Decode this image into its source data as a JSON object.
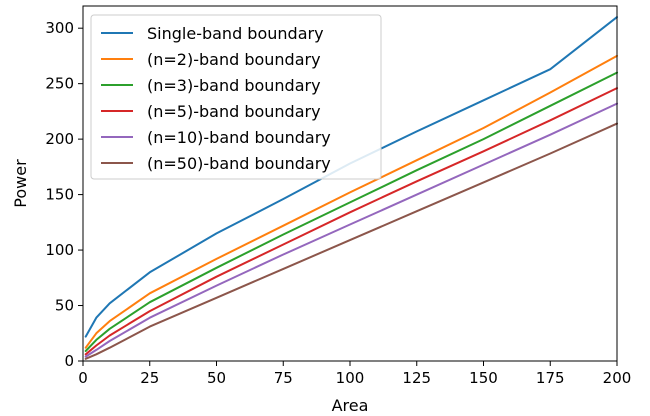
{
  "chart_data": {
    "type": "line",
    "title": "",
    "xlabel": "Area",
    "ylabel": "Power",
    "xlim": [
      0,
      200
    ],
    "ylim": [
      0,
      320
    ],
    "xticks": [
      0,
      25,
      50,
      75,
      100,
      125,
      150,
      175,
      200
    ],
    "yticks": [
      0,
      50,
      100,
      150,
      200,
      250,
      300
    ],
    "grid": false,
    "legend_position": "top-left",
    "series": [
      {
        "name": "Single-band boundary",
        "color": "#1f77b4",
        "points": [
          [
            1,
            22
          ],
          [
            5,
            39
          ],
          [
            10,
            52
          ],
          [
            25,
            80
          ],
          [
            50,
            115
          ],
          [
            75,
            146
          ],
          [
            100,
            178
          ],
          [
            125,
            207
          ],
          [
            150,
            235
          ],
          [
            175,
            263
          ],
          [
            200,
            310
          ]
        ]
      },
      {
        "name": "(n=2)-band boundary",
        "color": "#ff7f0e",
        "points": [
          [
            1,
            12
          ],
          [
            5,
            25
          ],
          [
            10,
            36
          ],
          [
            25,
            61
          ],
          [
            50,
            92
          ],
          [
            75,
            122
          ],
          [
            100,
            152
          ],
          [
            125,
            181
          ],
          [
            150,
            210
          ],
          [
            175,
            242
          ],
          [
            200,
            275
          ]
        ]
      },
      {
        "name": "(n=3)-band boundary",
        "color": "#2ca02c",
        "points": [
          [
            1,
            9
          ],
          [
            5,
            19
          ],
          [
            10,
            29
          ],
          [
            25,
            53
          ],
          [
            50,
            84
          ],
          [
            75,
            114
          ],
          [
            100,
            143
          ],
          [
            125,
            172
          ],
          [
            150,
            200
          ],
          [
            175,
            230
          ],
          [
            200,
            260
          ]
        ]
      },
      {
        "name": "(n=5)-band boundary",
        "color": "#d62728",
        "points": [
          [
            1,
            6
          ],
          [
            5,
            14
          ],
          [
            10,
            23
          ],
          [
            25,
            45
          ],
          [
            50,
            76
          ],
          [
            75,
            105
          ],
          [
            100,
            134
          ],
          [
            125,
            162
          ],
          [
            150,
            189
          ],
          [
            175,
            217
          ],
          [
            200,
            246
          ]
        ]
      },
      {
        "name": "(n=10)-band boundary",
        "color": "#9467bd",
        "points": [
          [
            1,
            4
          ],
          [
            5,
            10
          ],
          [
            10,
            18
          ],
          [
            25,
            39
          ],
          [
            50,
            68
          ],
          [
            75,
            96
          ],
          [
            100,
            123
          ],
          [
            125,
            150
          ],
          [
            150,
            177
          ],
          [
            175,
            204
          ],
          [
            200,
            232
          ]
        ]
      },
      {
        "name": "(n=50)-band boundary",
        "color": "#8c564b",
        "points": [
          [
            1,
            2
          ],
          [
            5,
            6
          ],
          [
            10,
            12
          ],
          [
            25,
            31
          ],
          [
            50,
            57
          ],
          [
            75,
            83
          ],
          [
            100,
            109
          ],
          [
            125,
            135
          ],
          [
            150,
            161
          ],
          [
            175,
            187
          ],
          [
            200,
            214
          ]
        ]
      }
    ]
  }
}
